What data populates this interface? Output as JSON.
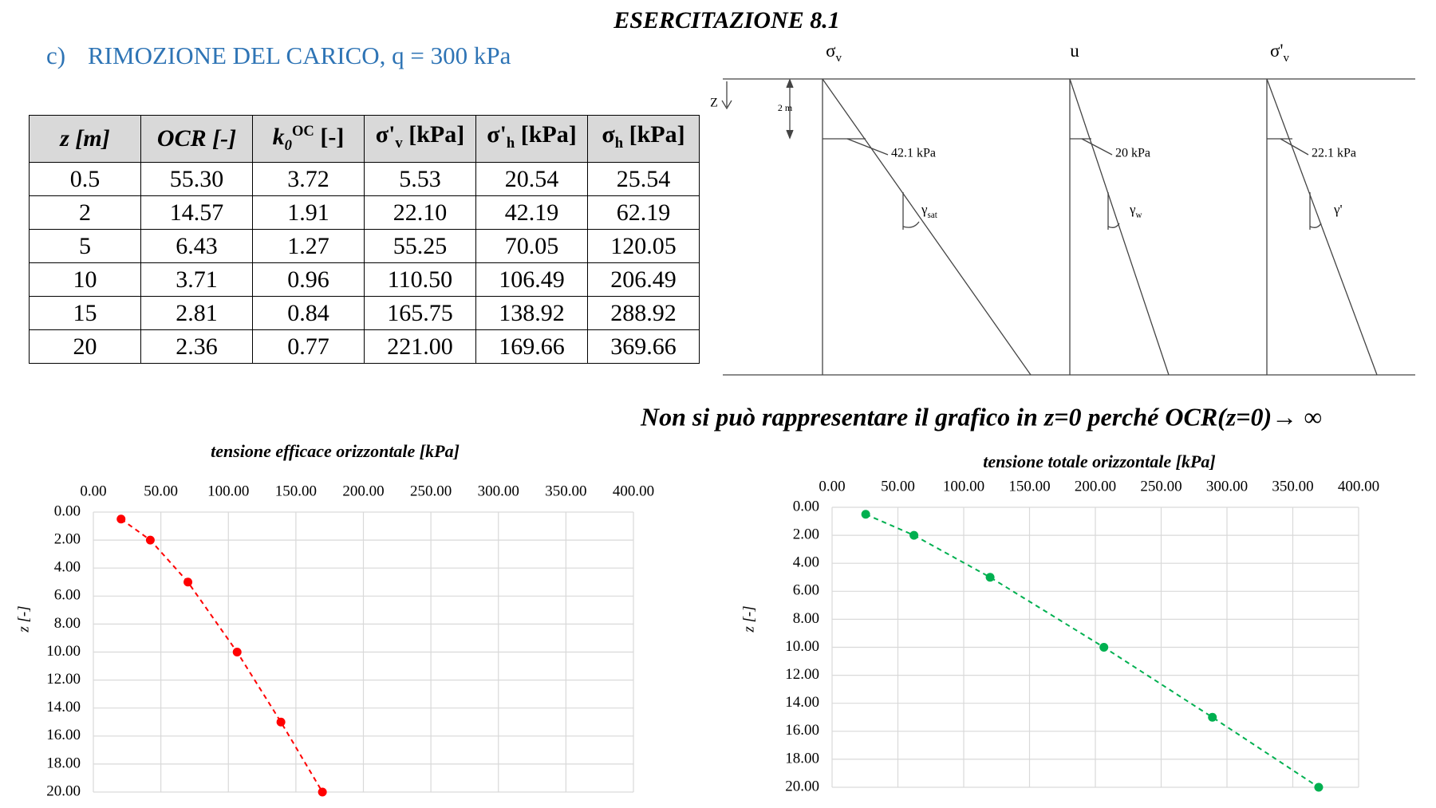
{
  "title": "ESERCITAZIONE 8.1",
  "section": {
    "label": "c)",
    "text": "RIMOZIONE DEL CARICO, q = 300 kPa"
  },
  "table": {
    "header": [
      {
        "text": "z [m]"
      },
      {
        "text": "OCR [-]"
      },
      {
        "text": "k",
        "sub": "0",
        "sup": "OC",
        "after": " [-]"
      },
      {
        "text": "σ'",
        "sub": "v",
        "after": " [kPa]"
      },
      {
        "text": "σ'",
        "sub": "h",
        "after": " [kPa]"
      },
      {
        "text": "σ",
        "sub": "h",
        "after": " [kPa]"
      }
    ],
    "rows": [
      [
        "0.5",
        "55.30",
        "3.72",
        "5.53",
        "20.54",
        "25.54"
      ],
      [
        "2",
        "14.57",
        "1.91",
        "22.10",
        "42.19",
        "62.19"
      ],
      [
        "5",
        "6.43",
        "1.27",
        "55.25",
        "70.05",
        "120.05"
      ],
      [
        "10",
        "3.71",
        "0.96",
        "110.50",
        "106.49",
        "206.49"
      ],
      [
        "15",
        "2.81",
        "0.84",
        "165.75",
        "138.92",
        "288.92"
      ],
      [
        "20",
        "2.36",
        "0.77",
        "221.00",
        "169.66",
        "369.66"
      ]
    ]
  },
  "diagram": {
    "columns": [
      {
        "text": "σ",
        "sub": "v"
      },
      {
        "text": "u"
      },
      {
        "text": "σ'",
        "sub": "v"
      }
    ],
    "depth_axis": "Z",
    "dimension": "2 m",
    "values": [
      {
        "label": "42.1 kPa",
        "slope": {
          "text": "γ",
          "sub": "sat"
        }
      },
      {
        "label": "20 kPa",
        "slope": {
          "text": "γ",
          "sub": "w"
        }
      },
      {
        "label": "22.1 kPa",
        "slope": {
          "text": "γ'"
        }
      }
    ]
  },
  "note": "Non si può rappresentare il grafico in z=0 perché OCR(z=0)→ ∞",
  "chart_data": [
    {
      "type": "scatter",
      "title": "tensione efficace orizzontale [kPa]",
      "y_label": "z [-]",
      "x": [
        20.54,
        42.19,
        70.05,
        106.49,
        138.92,
        169.66
      ],
      "values": [
        0.5,
        2,
        5,
        10,
        15,
        20
      ],
      "color": "#ff0000",
      "line_style": "dashed",
      "xlim": [
        0,
        400
      ],
      "xticks": [
        {
          "value": 0,
          "label": "0.00"
        },
        {
          "value": 50,
          "label": "50.00"
        },
        {
          "value": 100,
          "label": "100.00"
        },
        {
          "value": 150,
          "label": "150.00"
        },
        {
          "value": 200,
          "label": "200.00"
        },
        {
          "value": 250,
          "label": "250.00"
        },
        {
          "value": 300,
          "label": "300.00"
        },
        {
          "value": 350,
          "label": "350.00"
        },
        {
          "value": 400,
          "label": "400.00"
        }
      ],
      "ylim": [
        0,
        20
      ],
      "yticks": [
        {
          "value": 0,
          "label": "0.00"
        },
        {
          "value": 2,
          "label": "2.00"
        },
        {
          "value": 4,
          "label": "4.00"
        },
        {
          "value": 6,
          "label": "6.00"
        },
        {
          "value": 8,
          "label": "8.00"
        },
        {
          "value": 10,
          "label": "10.00"
        },
        {
          "value": 12,
          "label": "12.00"
        },
        {
          "value": 14,
          "label": "14.00"
        },
        {
          "value": 16,
          "label": "16.00"
        },
        {
          "value": 18,
          "label": "18.00"
        },
        {
          "value": 20,
          "label": "20.00"
        }
      ],
      "y_reversed": true,
      "x_axis_position": "top",
      "grid": true
    },
    {
      "type": "scatter",
      "title": "tensione totale orizzontale [kPa]",
      "y_label": "z [-]",
      "x": [
        25.54,
        62.19,
        120.05,
        206.49,
        288.92,
        369.66
      ],
      "values": [
        0.5,
        2,
        5,
        10,
        15,
        20
      ],
      "color": "#00b050",
      "line_style": "dashed",
      "xlim": [
        0,
        400
      ],
      "xticks": [
        {
          "value": 0,
          "label": "0.00"
        },
        {
          "value": 50,
          "label": "50.00"
        },
        {
          "value": 100,
          "label": "100.00"
        },
        {
          "value": 150,
          "label": "150.00"
        },
        {
          "value": 200,
          "label": "200.00"
        },
        {
          "value": 250,
          "label": "250.00"
        },
        {
          "value": 300,
          "label": "300.00"
        },
        {
          "value": 350,
          "label": "350.00"
        },
        {
          "value": 400,
          "label": "400.00"
        }
      ],
      "ylim": [
        0,
        20
      ],
      "yticks": [
        {
          "value": 0,
          "label": "0.00"
        },
        {
          "value": 2,
          "label": "2.00"
        },
        {
          "value": 4,
          "label": "4.00"
        },
        {
          "value": 6,
          "label": "6.00"
        },
        {
          "value": 8,
          "label": "8.00"
        },
        {
          "value": 10,
          "label": "10.00"
        },
        {
          "value": 12,
          "label": "12.00"
        },
        {
          "value": 14,
          "label": "14.00"
        },
        {
          "value": 16,
          "label": "16.00"
        },
        {
          "value": 18,
          "label": "18.00"
        },
        {
          "value": 20,
          "label": "20.00"
        }
      ],
      "y_reversed": true,
      "x_axis_position": "top",
      "grid": true
    }
  ]
}
